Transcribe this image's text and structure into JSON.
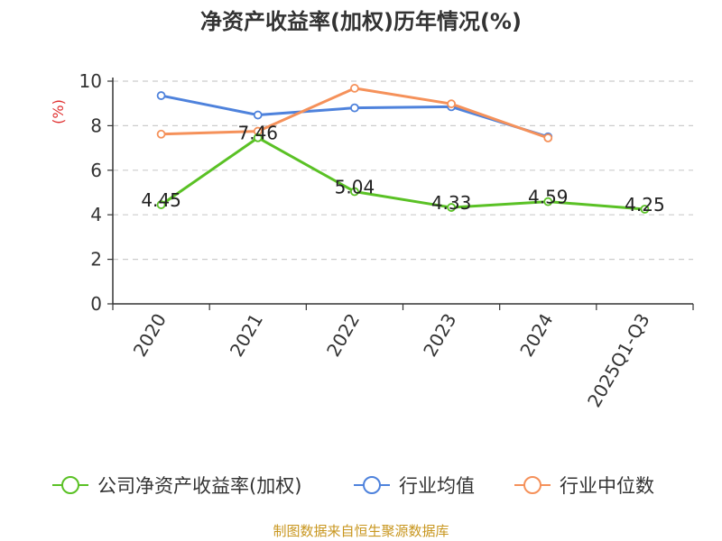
{
  "source_note": "制图数据来自恒生聚源数据库",
  "chart_data": {
    "type": "line",
    "title": "净资产收益率(加权)历年情况(%)",
    "ylabel": "(%)",
    "xlabel": "",
    "categories": [
      "2020",
      "2021",
      "2022",
      "2023",
      "2024",
      "2025Q1-Q3"
    ],
    "ylim": [
      0,
      10
    ],
    "yticks": [
      0,
      2,
      4,
      6,
      8,
      10
    ],
    "grid": "horizontal-dashed",
    "legend_position": "bottom",
    "series": [
      {
        "name": "公司净资产收益率(加权)",
        "color": "#5ac125",
        "values": [
          4.45,
          7.46,
          5.04,
          4.33,
          4.59,
          4.25
        ],
        "labels": [
          "4.45",
          "7.46",
          "5.04",
          "4.33",
          "4.59",
          "4.25"
        ]
      },
      {
        "name": "行业均值",
        "color": "#4e82dc",
        "values": [
          9.35,
          8.48,
          8.8,
          8.85,
          7.5,
          null
        ]
      },
      {
        "name": "行业中位数",
        "color": "#f5915a",
        "values": [
          7.62,
          7.75,
          9.68,
          8.98,
          7.45,
          null
        ]
      }
    ]
  }
}
